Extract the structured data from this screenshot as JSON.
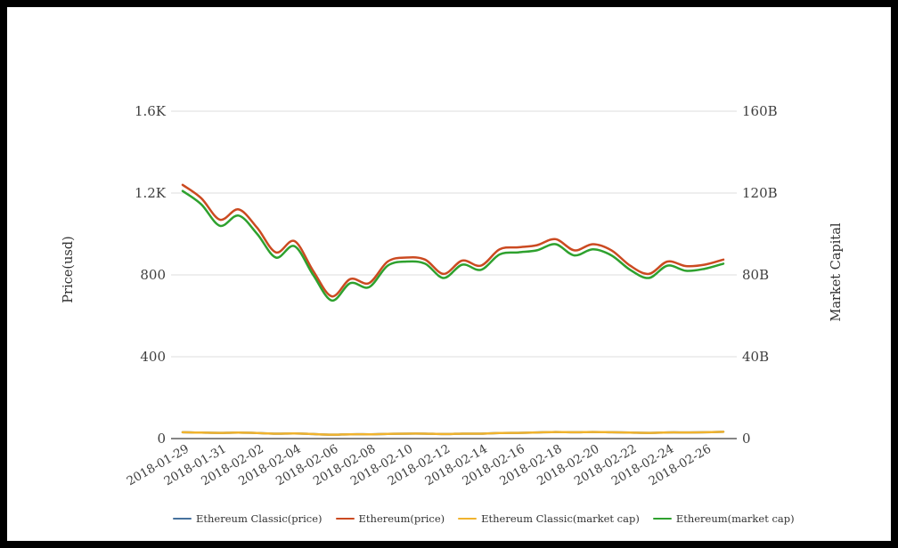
{
  "chart_data": {
    "type": "line",
    "title": "",
    "x": [
      "2018-01-29",
      "2018-01-30",
      "2018-01-31",
      "2018-02-01",
      "2018-02-02",
      "2018-02-03",
      "2018-02-04",
      "2018-02-05",
      "2018-02-06",
      "2018-02-07",
      "2018-02-08",
      "2018-02-09",
      "2018-02-10",
      "2018-02-11",
      "2018-02-12",
      "2018-02-13",
      "2018-02-14",
      "2018-02-15",
      "2018-02-16",
      "2018-02-17",
      "2018-02-18",
      "2018-02-19",
      "2018-02-20",
      "2018-02-21",
      "2018-02-22",
      "2018-02-23",
      "2018-02-24",
      "2018-02-25",
      "2018-02-26",
      "2018-02-27"
    ],
    "x_tick_labels": [
      "2018-01-29",
      "2018-01-31",
      "2018-02-02",
      "2018-02-04",
      "2018-02-06",
      "2018-02-08",
      "2018-02-10",
      "2018-02-12",
      "2018-02-14",
      "2018-02-16",
      "2018-02-18",
      "2018-02-20",
      "2018-02-22",
      "2018-02-24",
      "2018-02-26"
    ],
    "series": [
      {
        "name": "Ethereum Classic(price)",
        "color": "#46719d",
        "axis": "left",
        "values": [
          31,
          29,
          28,
          29,
          27,
          24,
          25,
          22,
          19,
          21,
          21,
          23,
          24,
          24,
          22,
          24,
          24,
          27,
          28,
          30,
          32,
          31,
          32,
          31,
          29,
          28,
          30,
          30,
          31,
          33
        ]
      },
      {
        "name": "Ethereum(price)",
        "color": "#cb4a21",
        "axis": "left",
        "values": [
          1240,
          1175,
          1070,
          1120,
          1030,
          910,
          965,
          820,
          695,
          780,
          760,
          865,
          885,
          875,
          805,
          870,
          845,
          925,
          935,
          945,
          975,
          920,
          950,
          920,
          845,
          805,
          865,
          843,
          850,
          875
        ]
      },
      {
        "name": "Ethereum Classic(market cap)",
        "color": "#f0b32e",
        "axis": "right",
        "values": [
          3.1,
          2.9,
          2.8,
          2.9,
          2.7,
          2.4,
          2.5,
          2.2,
          1.9,
          2.1,
          2.1,
          2.3,
          2.4,
          2.4,
          2.2,
          2.4,
          2.4,
          2.7,
          2.8,
          3.0,
          3.2,
          3.1,
          3.2,
          3.1,
          2.9,
          2.8,
          3.0,
          3.0,
          3.1,
          3.3
        ]
      },
      {
        "name": "Ethereum(market cap)",
        "color": "#2ea12e",
        "axis": "right",
        "values": [
          121,
          114.5,
          104,
          109,
          100,
          88.5,
          94,
          80,
          67.5,
          76,
          74,
          84.5,
          86.5,
          85.5,
          78.5,
          85,
          82.5,
          90,
          91,
          92,
          95,
          89.5,
          92.5,
          89.5,
          82.5,
          78.5,
          84.5,
          82,
          83,
          85.5
        ]
      }
    ],
    "y_axis_left": {
      "title": "Price(usd)",
      "tick_labels": [
        "0",
        "400",
        "800",
        "1.2K",
        "1.6K"
      ],
      "tick_values": [
        0,
        400,
        800,
        1200,
        1600
      ],
      "range": [
        0,
        1600
      ]
    },
    "y_axis_right": {
      "title": "Market Capital",
      "tick_labels": [
        "0",
        "40B",
        "80B",
        "120B",
        "160B"
      ],
      "tick_values": [
        0,
        40,
        80,
        120,
        160
      ],
      "range": [
        0,
        160
      ]
    },
    "legend_position": "bottom",
    "grid": true
  },
  "style": {
    "background": "#ffffff",
    "frame_color": "#000000",
    "grid_color": "#dcdcdc",
    "axis_line_color": "#3c3c3c",
    "tick_label_color": "#3f3f3f",
    "axis_title_color": "#333333",
    "legend_text_color": "#333333"
  }
}
